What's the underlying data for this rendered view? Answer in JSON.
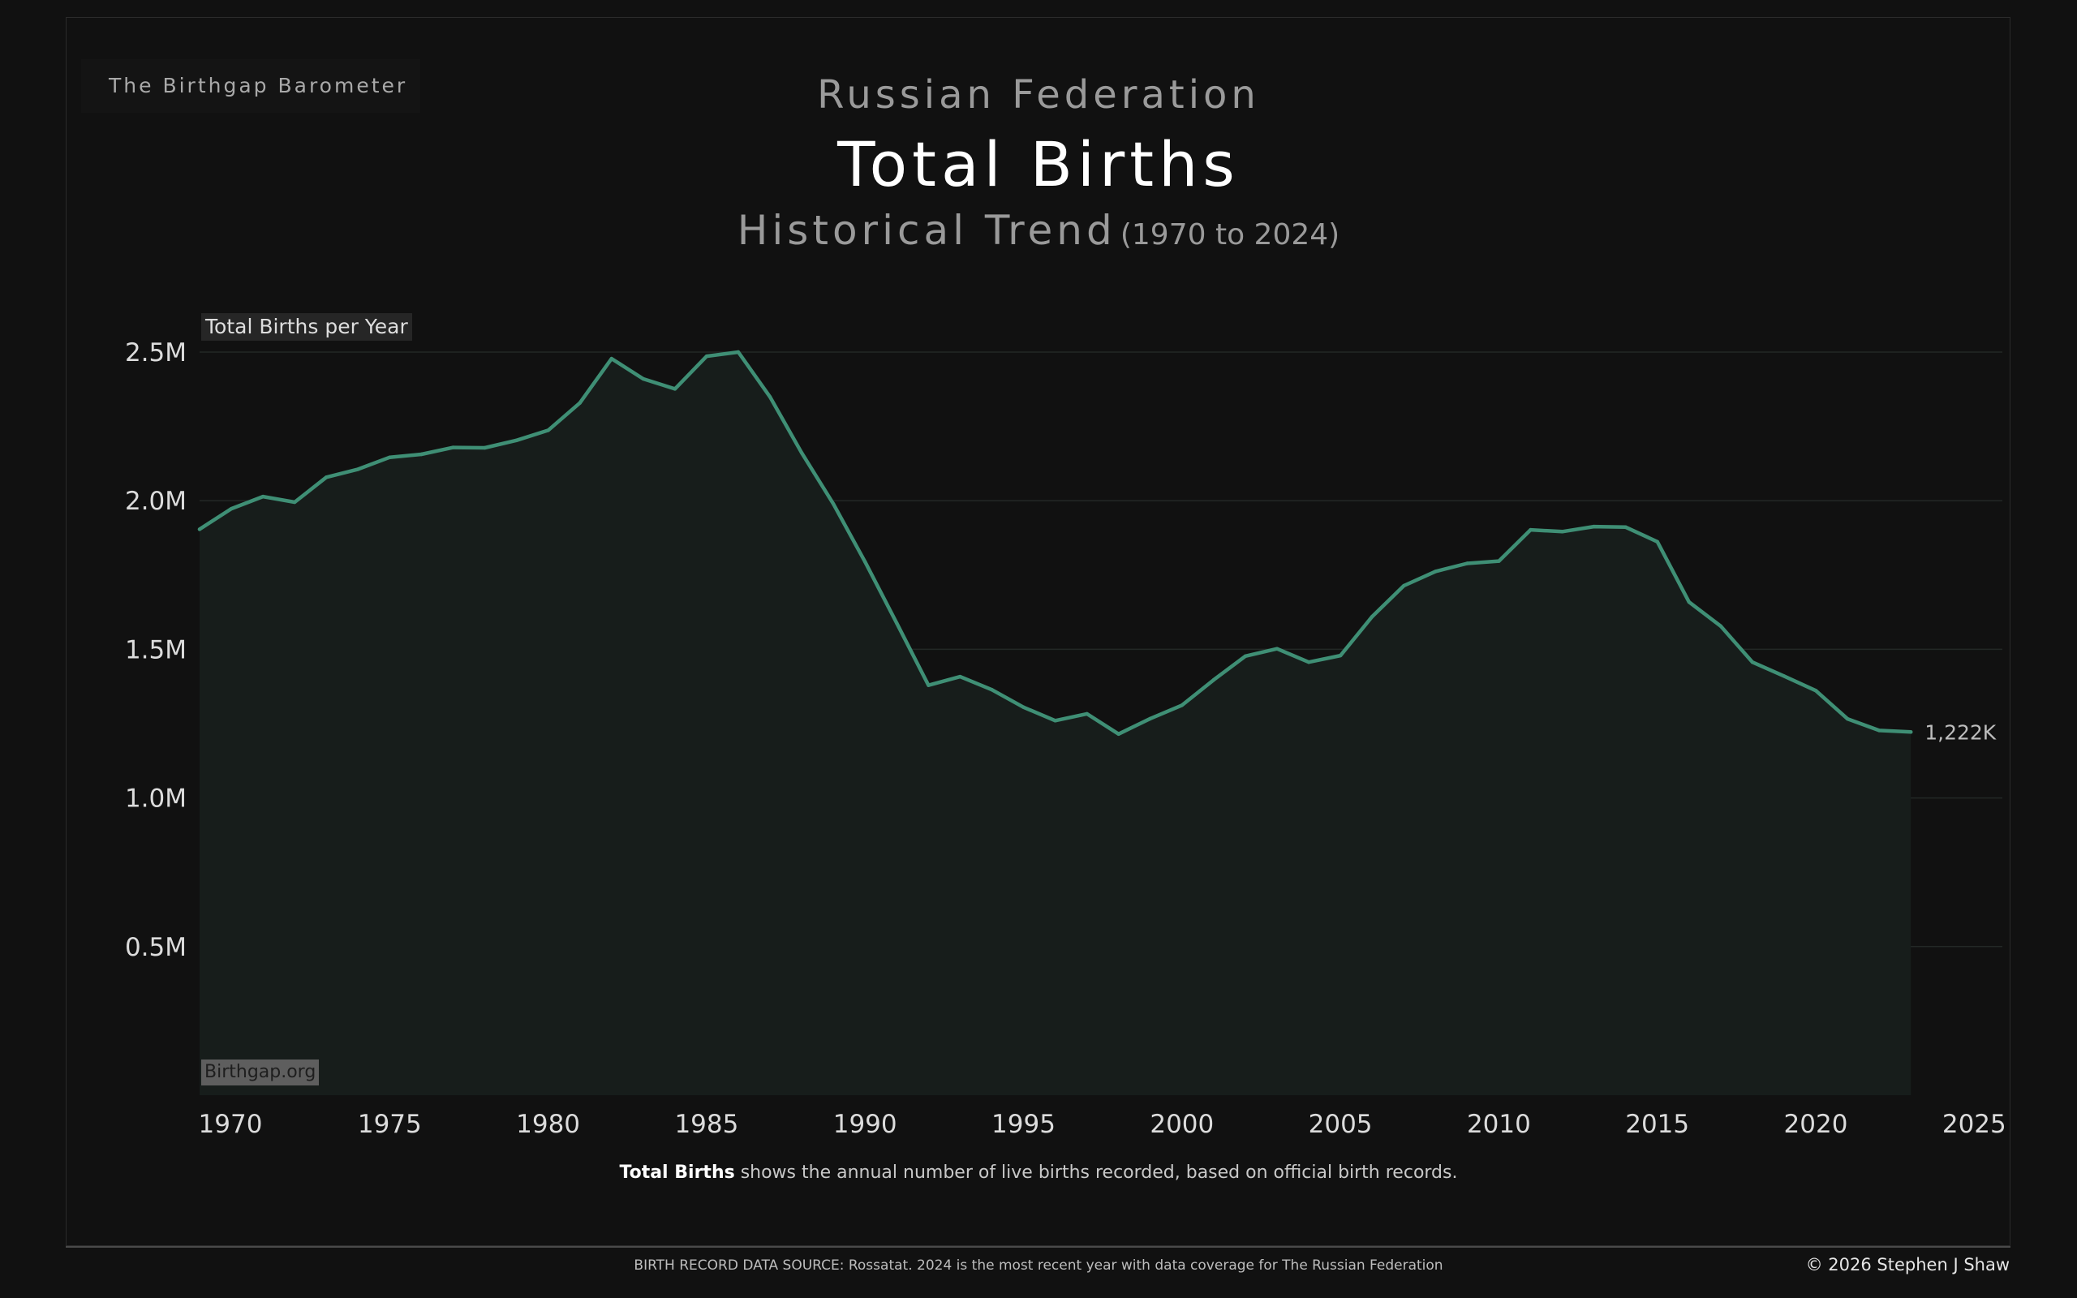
{
  "header": {
    "brand": "The Birthgap Barometer",
    "country": "Russian Federation",
    "title": "Total Births",
    "subtitle": "Historical Trend",
    "subtitle_range": "(1970 to 2024)"
  },
  "chart_data": {
    "type": "area",
    "ylabel": "Total Births per Year",
    "ylim": [
      0,
      2500000
    ],
    "xlim": [
      1970,
      2024
    ],
    "yticks": [
      {
        "value": 500000,
        "label": "0.5M"
      },
      {
        "value": 1000000,
        "label": "1.0M"
      },
      {
        "value": 1500000,
        "label": "1.5M"
      },
      {
        "value": 2000000,
        "label": "2.0M"
      },
      {
        "value": 2500000,
        "label": "2.5M"
      }
    ],
    "xticks": [
      1970,
      1975,
      1980,
      1985,
      1990,
      1995,
      2000,
      2005,
      2010,
      2015,
      2020,
      2025
    ],
    "grid": true,
    "colors": {
      "line": "#3f8f75",
      "area": "#171d1b",
      "grid": "#232826"
    },
    "series": [
      {
        "x": [
          1970,
          1971,
          1972,
          1973,
          1974,
          1975,
          1976,
          1977,
          1978,
          1979,
          1980,
          1981,
          1982,
          1983,
          1984,
          1985,
          1986,
          1987,
          1988,
          1989,
          1990,
          1991,
          1992,
          1993,
          1994,
          1995,
          1996,
          1997,
          1998,
          1999,
          2000,
          2001,
          2002,
          2003,
          2004,
          2005,
          2006,
          2007,
          2008,
          2009,
          2010,
          2011,
          2012,
          2013,
          2014,
          2015,
          2016,
          2017,
          2018,
          2019,
          2020,
          2021,
          2022,
          2023,
          2024
        ],
        "values": [
          1904000,
          1973000,
          2014000,
          1995000,
          2079000,
          2106000,
          2146000,
          2156000,
          2179000,
          2178000,
          2203000,
          2237000,
          2329000,
          2478000,
          2410000,
          2376000,
          2486000,
          2500000,
          2349000,
          2161000,
          1989000,
          1794000,
          1588000,
          1379000,
          1408000,
          1364000,
          1305000,
          1260000,
          1283000,
          1215000,
          1267000,
          1312000,
          1397000,
          1477000,
          1502000,
          1457000,
          1479000,
          1610000,
          1714000,
          1762000,
          1789000,
          1797000,
          1902000,
          1896000,
          1913000,
          1911000,
          1862000,
          1659000,
          1578000,
          1457000,
          1410000,
          1361000,
          1266000,
          1227000,
          1222000
        ]
      }
    ],
    "end_label": "1,222K"
  },
  "watermark": "Birthgap.org",
  "caption": {
    "bold": "Total Births",
    "rest": " shows the annual number of live births recorded, based on official birth records."
  },
  "footer": {
    "source": "BIRTH RECORD DATA SOURCE: Rossatat. 2024 is the most recent year with data coverage for The Russian Federation",
    "copyright": "© 2026 Stephen J Shaw"
  }
}
